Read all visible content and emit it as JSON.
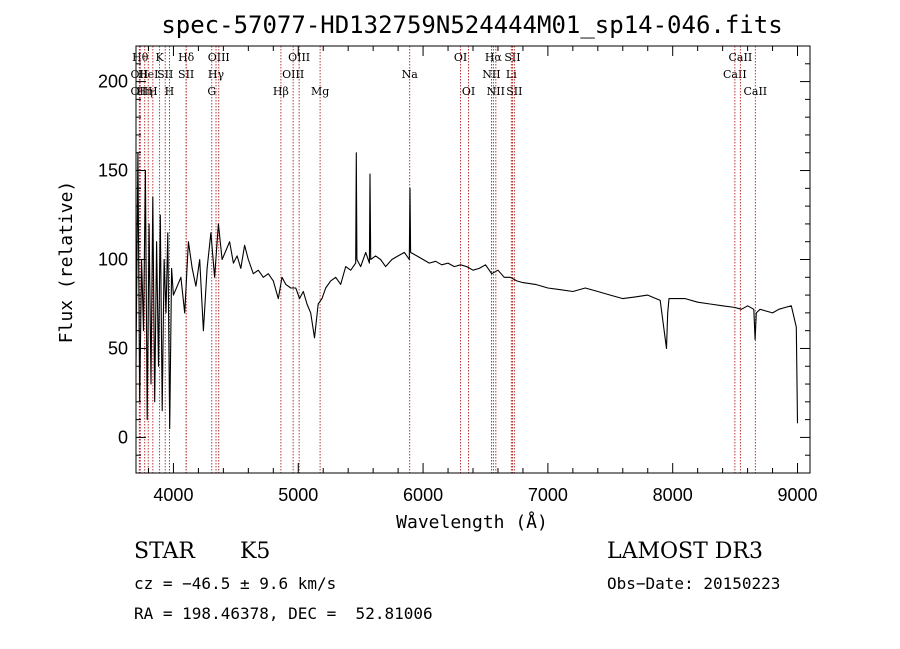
{
  "chart_data": {
    "type": "line",
    "title": "spec-57077-HD132759N524444M01_sp14-046.fits",
    "xlabel": "Wavelength (Å)",
    "ylabel": "Flux (relative)",
    "xlim": [
      3700,
      9100
    ],
    "ylim": [
      -20,
      220
    ],
    "xticks": [
      4000,
      5000,
      6000,
      7000,
      8000,
      9000
    ],
    "yticks": [
      0,
      50,
      100,
      150,
      200
    ],
    "series": [
      {
        "name": "spectrum",
        "color": "#000000",
        "x": [
          3700,
          3715,
          3730,
          3745,
          3760,
          3775,
          3790,
          3805,
          3820,
          3835,
          3850,
          3865,
          3880,
          3895,
          3910,
          3925,
          3940,
          3955,
          3970,
          3985,
          4000,
          4030,
          4060,
          4090,
          4120,
          4150,
          4180,
          4210,
          4240,
          4270,
          4300,
          4330,
          4360,
          4390,
          4420,
          4450,
          4480,
          4510,
          4540,
          4570,
          4600,
          4640,
          4680,
          4720,
          4760,
          4800,
          4840,
          4870,
          4900,
          4940,
          4980,
          5010,
          5040,
          5070,
          5100,
          5130,
          5160,
          5190,
          5220,
          5260,
          5300,
          5340,
          5380,
          5420,
          5460,
          5465,
          5470,
          5500,
          5540,
          5570,
          5575,
          5580,
          5620,
          5660,
          5700,
          5750,
          5800,
          5850,
          5890,
          5895,
          5900,
          5950,
          6000,
          6050,
          6100,
          6150,
          6200,
          6250,
          6300,
          6350,
          6400,
          6450,
          6500,
          6550,
          6600,
          6650,
          6700,
          6750,
          6800,
          6900,
          7000,
          7100,
          7200,
          7300,
          7400,
          7500,
          7600,
          7700,
          7800,
          7900,
          7950,
          7960,
          7970,
          8000,
          8100,
          8200,
          8300,
          8400,
          8500,
          8550,
          8600,
          8650,
          8660,
          8670,
          8700,
          8750,
          8800,
          8850,
          8900,
          8950,
          8990,
          9000
        ],
        "y": [
          40,
          160,
          20,
          100,
          60,
          150,
          10,
          120,
          30,
          135,
          20,
          110,
          40,
          125,
          15,
          100,
          70,
          115,
          5,
          95,
          80,
          85,
          90,
          70,
          110,
          95,
          85,
          100,
          60,
          95,
          115,
          90,
          120,
          100,
          105,
          110,
          98,
          102,
          95,
          108,
          100,
          92,
          94,
          90,
          92,
          88,
          78,
          90,
          86,
          84,
          84,
          78,
          82,
          75,
          70,
          56,
          75,
          78,
          84,
          88,
          90,
          86,
          96,
          94,
          98,
          160,
          100,
          96,
          104,
          98,
          148,
          100,
          102,
          100,
          96,
          100,
          102,
          104,
          100,
          140,
          104,
          102,
          100,
          98,
          99,
          97,
          98,
          96,
          97,
          96,
          94,
          95,
          97,
          92,
          94,
          90,
          90,
          88,
          87,
          86,
          84,
          83,
          82,
          84,
          82,
          80,
          78,
          79,
          80,
          77,
          50,
          70,
          78,
          78,
          78,
          76,
          75,
          74,
          73,
          72,
          74,
          72,
          55,
          70,
          72,
          71,
          70,
          72,
          73,
          74,
          62,
          8
        ]
      }
    ],
    "lines": [
      {
        "wl": 3734,
        "row": 1,
        "text": "Hθ"
      },
      {
        "wl": 3727,
        "row": 2,
        "text": "OII"
      },
      {
        "wl": 3727,
        "row": 3,
        "text": "OII"
      },
      {
        "wl": 3770,
        "row": 3,
        "text": "Hη"
      },
      {
        "wl": 3798,
        "row": 2,
        "text": "HeI"
      },
      {
        "wl": 3835,
        "row": 3,
        "text": "H"
      },
      {
        "wl": 3889,
        "row": 1,
        "text": "K"
      },
      {
        "wl": 3934,
        "row": 2,
        "text": "SII"
      },
      {
        "wl": 3968,
        "row": 3,
        "text": "H"
      },
      {
        "wl": 4102,
        "row": 1,
        "text": "Hδ"
      },
      {
        "wl": 4102,
        "row": 2,
        "text": "SII"
      },
      {
        "wl": 4307,
        "row": 3,
        "text": "G"
      },
      {
        "wl": 4341,
        "row": 2,
        "text": "Hγ"
      },
      {
        "wl": 4363,
        "row": 1,
        "text": "OIII"
      },
      {
        "wl": 4861,
        "row": 3,
        "text": "Hβ"
      },
      {
        "wl": 4959,
        "row": 2,
        "text": "OIII"
      },
      {
        "wl": 5007,
        "row": 1,
        "text": "OIII"
      },
      {
        "wl": 5175,
        "row": 3,
        "text": "Mg"
      },
      {
        "wl": 5893,
        "row": 2,
        "text": "Na"
      },
      {
        "wl": 6300,
        "row": 1,
        "text": "OI"
      },
      {
        "wl": 6364,
        "row": 3,
        "text": "OI"
      },
      {
        "wl": 6548,
        "row": 2,
        "text": "NII"
      },
      {
        "wl": 6563,
        "row": 1,
        "text": "Hα"
      },
      {
        "wl": 6583,
        "row": 3,
        "text": "NII"
      },
      {
        "wl": 6707,
        "row": 2,
        "text": "Li"
      },
      {
        "wl": 6716,
        "row": 1,
        "text": "SII"
      },
      {
        "wl": 6731,
        "row": 3,
        "text": "SII"
      },
      {
        "wl": 8498,
        "row": 2,
        "text": "CaII"
      },
      {
        "wl": 8542,
        "row": 1,
        "text": "CaII"
      },
      {
        "wl": 8662,
        "row": 3,
        "text": "CaII"
      }
    ],
    "line_color": "#b22222"
  },
  "info": {
    "class": "STAR",
    "subclass": "K5",
    "survey": "LAMOST DR3",
    "cz": "cz = −46.5 ± 9.6 km/s",
    "obs_date": "Obs−Date: 20150223",
    "coords": "RA = 198.46378, DEC =  52.81006"
  }
}
